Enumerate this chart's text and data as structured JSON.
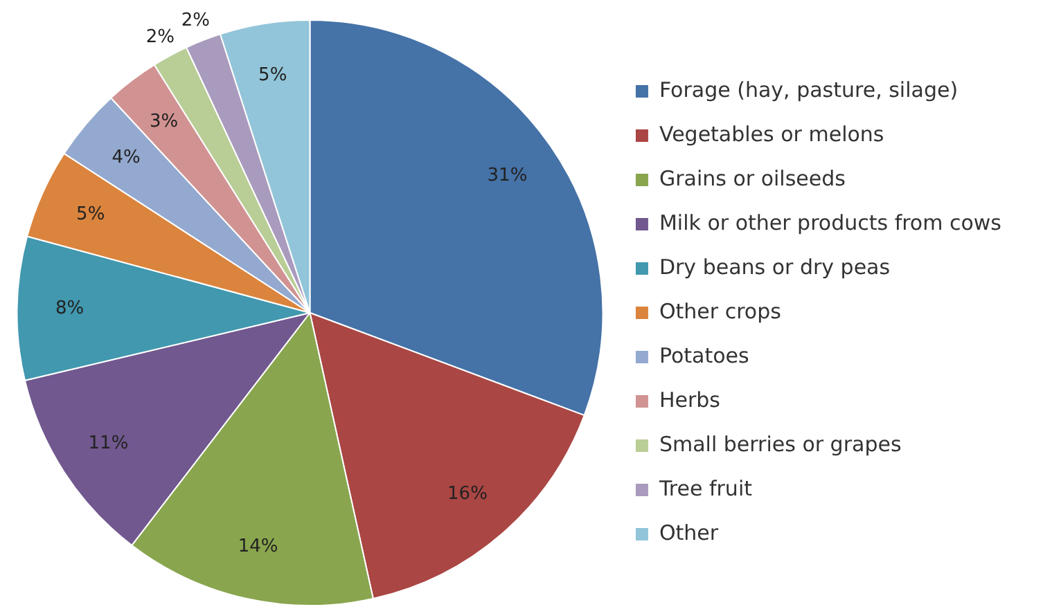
{
  "chart_data": {
    "type": "pie",
    "categories": [
      "Forage (hay, pasture, silage)",
      "Vegetables or melons",
      "Grains or oilseeds",
      "Milk or other products from cows",
      "Dry beans or dry peas",
      "Other crops",
      "Potatoes",
      "Herbs",
      "Small berries or grapes",
      "Tree fruit",
      "Other"
    ],
    "values": [
      31,
      16,
      14,
      11,
      8,
      5,
      4,
      3,
      2,
      2,
      5
    ],
    "colors": [
      "#4572a7",
      "#aa4643",
      "#89a54e",
      "#71588f",
      "#4198af",
      "#db843d",
      "#93a9cf",
      "#d19392",
      "#b9cd96",
      "#a99bbd",
      "#92c5d9"
    ],
    "value_labels": [
      "31%",
      "16%",
      "14%",
      "11%",
      "8%",
      "5%",
      "4%",
      "3%",
      "2%",
      "2%",
      "5%"
    ],
    "legend": "right"
  }
}
